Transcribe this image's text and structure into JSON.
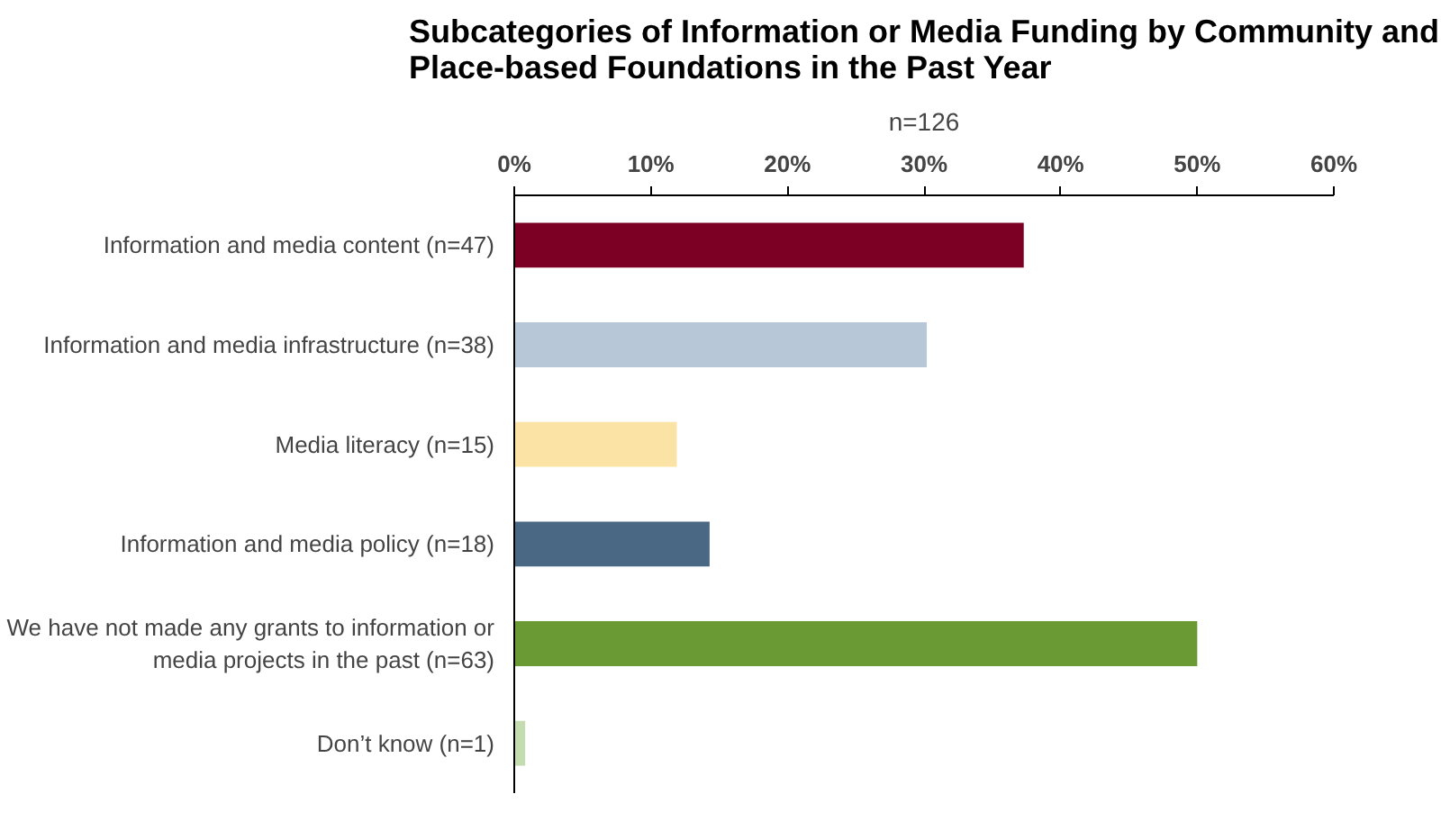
{
  "chart_data": {
    "type": "bar",
    "orientation": "horizontal",
    "title": "Subcategories of Information or Media Funding by Community and Place-based Foundations in the Past Year",
    "subtitle": "n=126",
    "categories": [
      "Information and media content (n=47)",
      "Information and media infrastructure (n=38)",
      "Media literacy (n=15)",
      "Information and media policy (n=18)",
      "We have not made any grants to information or media projects in the past (n=63)",
      "Don’t know (n=1)"
    ],
    "values": [
      37.3,
      30.2,
      11.9,
      14.3,
      50.0,
      0.8
    ],
    "colors": [
      "#7b0023",
      "#b7c7d7",
      "#fbe3a5",
      "#4a6784",
      "#6a9a33",
      "#c5dbb0"
    ],
    "xlim": [
      0,
      60
    ],
    "xticks": [
      {
        "value": 0,
        "label": "0%"
      },
      {
        "value": 10,
        "label": "10%"
      },
      {
        "value": 20,
        "label": "20%"
      },
      {
        "value": 30,
        "label": "30%"
      },
      {
        "value": 40,
        "label": "40%"
      },
      {
        "value": 50,
        "label": "50%"
      },
      {
        "value": 60,
        "label": "60%"
      }
    ],
    "grid": false,
    "legend": false
  }
}
